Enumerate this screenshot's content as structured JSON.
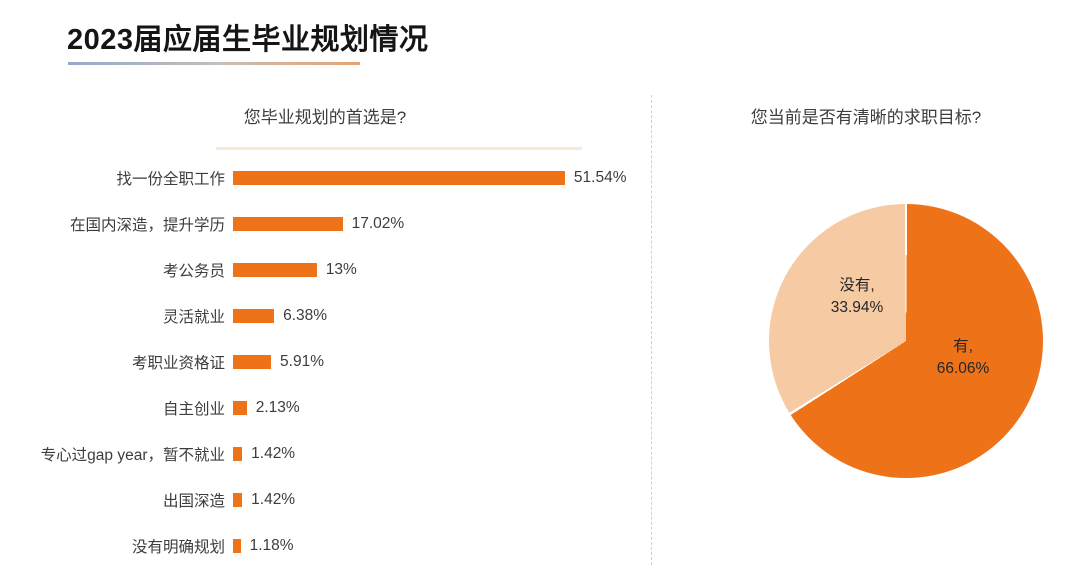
{
  "page": {
    "title": "2023届应届生毕业规划情况"
  },
  "style": {
    "accent_orange": "#ED7218",
    "peach": "#F6CBA4",
    "underline_gradient_left": "#93ABC9",
    "underline_gradient_right": "#E7A46F",
    "divider_color": "#CFCFCF",
    "text_dark": "#3D3D3D"
  },
  "chart_data": [
    {
      "type": "bar",
      "orientation": "horizontal",
      "title": "您毕业规划的首选是?",
      "categories": [
        "找一份全职工作",
        "在国内深造，提升学历",
        "考公务员",
        "灵活就业",
        "考职业资格证",
        "自主创业",
        "专心过gap year，暂不就业",
        "出国深造",
        "没有明确规划"
      ],
      "values": [
        51.54,
        17.02,
        13,
        6.38,
        5.91,
        2.13,
        1.42,
        1.42,
        1.18
      ],
      "value_labels": [
        "51.54%",
        "17.02%",
        "13%",
        "6.38%",
        "5.91%",
        "2.13%",
        "1.42%",
        "1.42%",
        "1.18%"
      ],
      "unit": "%",
      "bar_color": "#ED7218",
      "xlim": [
        0,
        60
      ],
      "grid": false,
      "legend": false
    },
    {
      "type": "pie",
      "title": "您当前是否有清晰的求职目标?",
      "labels_inside": true,
      "slices": [
        {
          "label": "有",
          "value": 66.06,
          "label_line": "有,",
          "pct_label": "66.06%",
          "color": "#ED7218"
        },
        {
          "label": "没有",
          "value": 33.94,
          "label_line": "没有,",
          "pct_label": "33.94%",
          "color": "#F6CBA4"
        }
      ]
    }
  ]
}
